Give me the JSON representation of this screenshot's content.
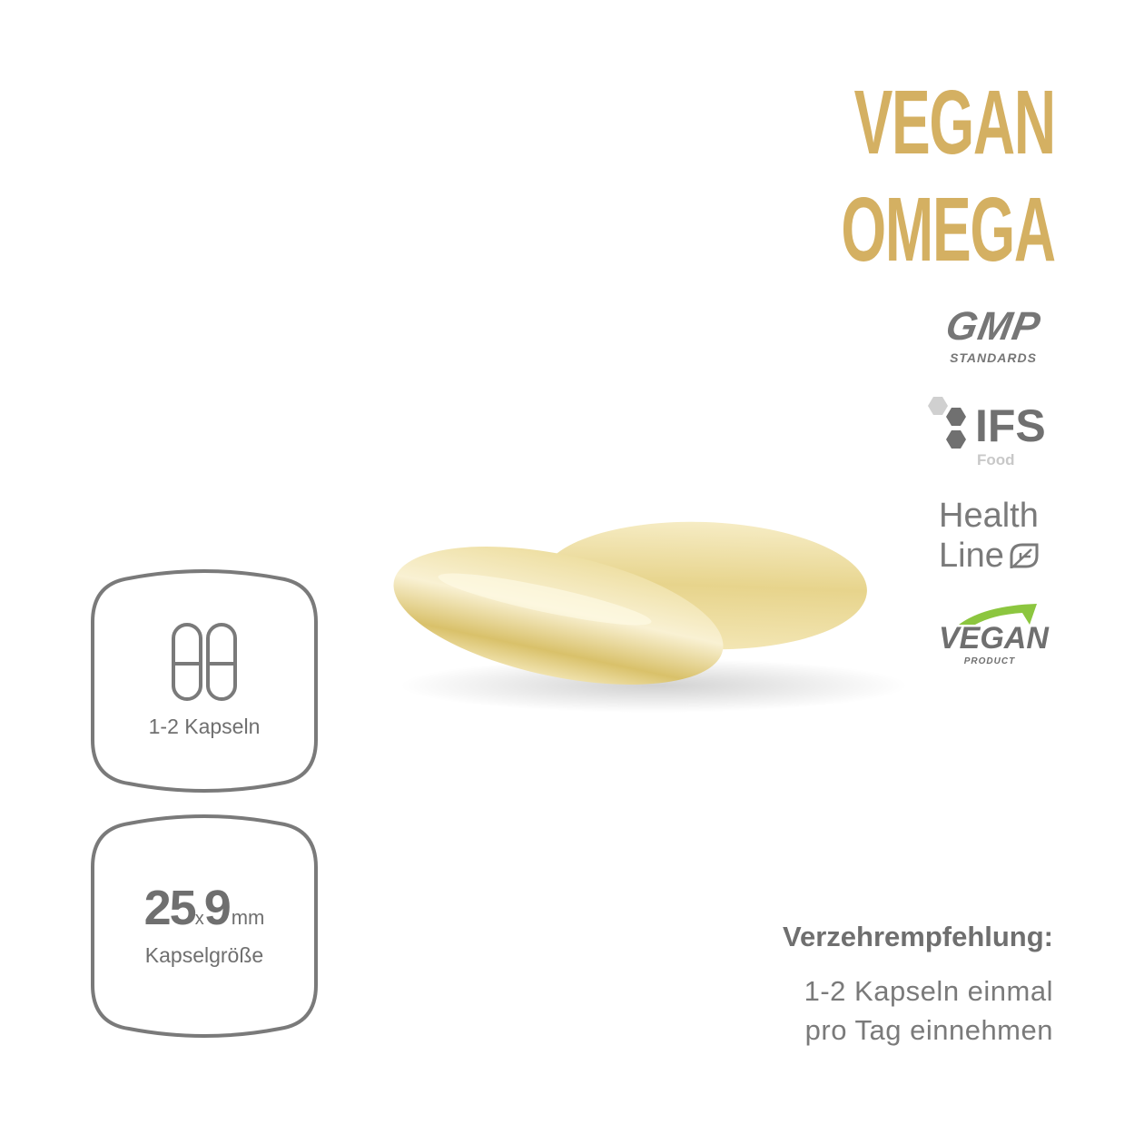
{
  "title": {
    "line1": "VEGAN",
    "line2": "OMEGA",
    "color": "#d4b062"
  },
  "badges": {
    "gmp": {
      "main": "GMP",
      "sub": "STANDARDS"
    },
    "ifs": {
      "main": "IFS",
      "sub": "Food"
    },
    "healthline": {
      "line1": "Health",
      "line2": "Line",
      "icon": "leaf-icon"
    },
    "vegan": {
      "main": "VEGAN",
      "sub": "PRODUCT",
      "accent": "#8cc63f"
    }
  },
  "dosage_box": {
    "icon": "capsules-icon",
    "label": "1-2 Kapseln"
  },
  "size_box": {
    "length": "25",
    "times": "x",
    "width": "9",
    "unit": "mm",
    "label": "Kapselgröße"
  },
  "recommendation": {
    "heading": "Verzehrempfehlung:",
    "line1": "1-2 Kapseln einmal",
    "line2": "pro Tag einnehmen"
  }
}
